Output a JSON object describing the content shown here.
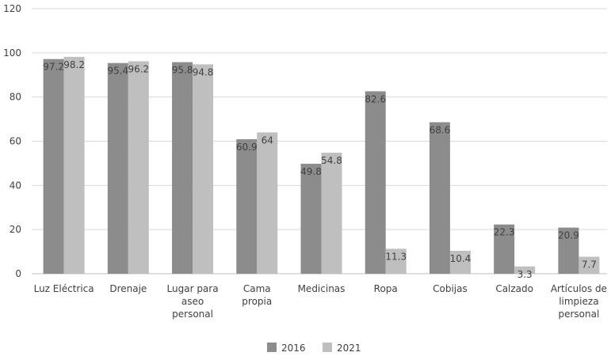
{
  "chart_data": {
    "type": "bar",
    "title": "",
    "xlabel": "",
    "ylabel": "",
    "ylim": [
      0,
      120
    ],
    "yticks": [
      0,
      20,
      40,
      60,
      80,
      100,
      120
    ],
    "grid": true,
    "legend_position": "bottom",
    "categories": [
      [
        "Luz Eléctrica"
      ],
      [
        "Drenaje"
      ],
      [
        "Lugar para",
        "aseo",
        "personal"
      ],
      [
        "Cama",
        "propia"
      ],
      [
        "Medicinas"
      ],
      [
        "Ropa"
      ],
      [
        "Cobijas"
      ],
      [
        "Calzado"
      ],
      [
        "Artículos de",
        "limpieza",
        "personal"
      ]
    ],
    "series": [
      {
        "name": "2016",
        "color": "#8c8c8c",
        "values": [
          97.2,
          95.4,
          95.8,
          60.9,
          49.8,
          82.6,
          68.6,
          22.3,
          20.9
        ],
        "labels": [
          "97.2",
          "95.4",
          "95.8",
          "60.9",
          "49.8",
          "82.6",
          "68.6",
          "22.3",
          "20.9"
        ]
      },
      {
        "name": "2021",
        "color": "#bfbfbf",
        "values": [
          98.2,
          96.2,
          94.8,
          64,
          54.8,
          11.3,
          10.4,
          3.3,
          7.7
        ],
        "labels": [
          "98.2",
          "96.2",
          "94.8",
          "64",
          "54.8",
          "11.3",
          "10.4",
          "3.3",
          "7.7"
        ]
      }
    ]
  }
}
